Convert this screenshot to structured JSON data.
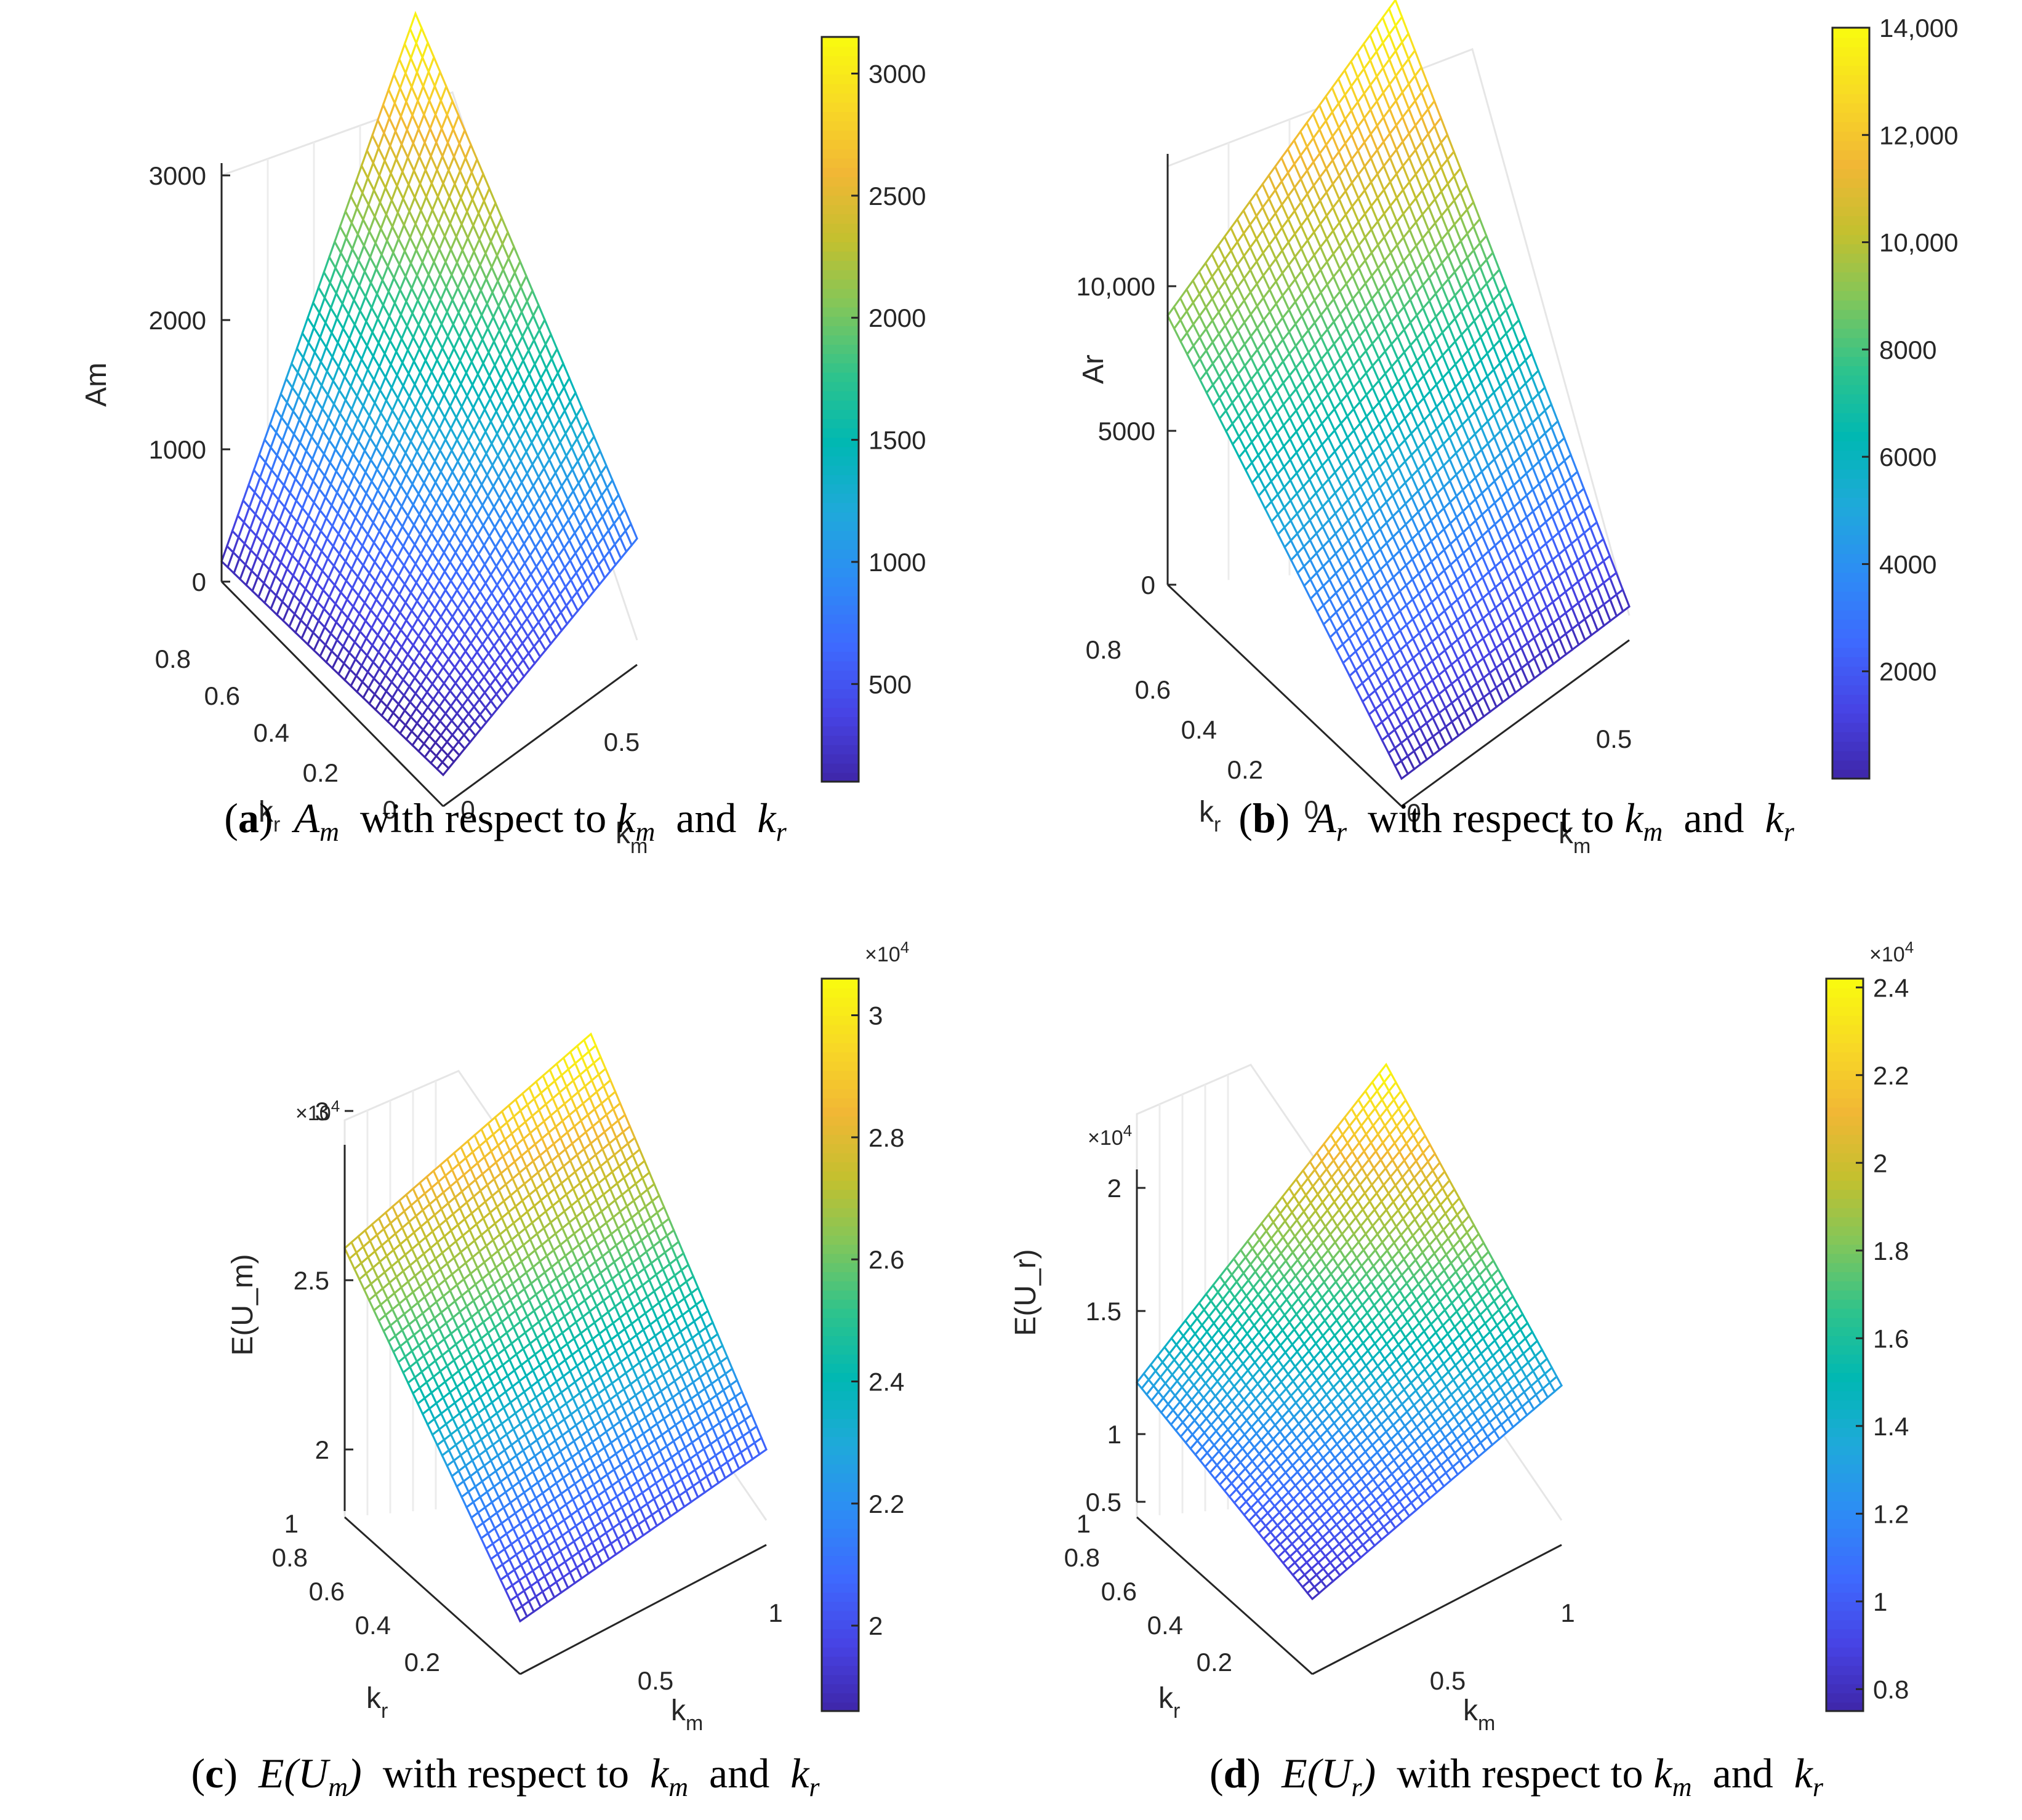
{
  "chart_data": [
    {
      "id": "a",
      "type": "surface",
      "zlabel": "Am",
      "xlabel": "k_m",
      "ylabel": "k_r",
      "zlim": [
        0,
        3000
      ],
      "z_ticks": [
        "0",
        "1000",
        "2000",
        "3000"
      ],
      "kr_ticks": [
        "0",
        "0.2",
        "0.4",
        "0.6",
        "0.8"
      ],
      "km_ticks": [
        "0",
        "0.5"
      ],
      "z_multiplier": "",
      "colorbar": {
        "min": 100,
        "max": 3150,
        "ticks": [
          "500",
          "1000",
          "1500",
          "2000",
          "2500",
          "3000"
        ],
        "multiplier": ""
      },
      "surface_corners": {
        "km0_kr0": 50,
        "km1_kr0": 750,
        "km0_kr1": 150,
        "km1_kr1": 3150
      },
      "caption": {
        "label": "a",
        "symbol": "A",
        "sub": "m",
        "text": "with respect to",
        "var1": "k",
        "var1_sub": "m",
        "conj": "and",
        "var2": "k",
        "var2_sub": "r"
      }
    },
    {
      "id": "b",
      "type": "surface",
      "zlabel": "Ar",
      "xlabel": "k_m",
      "ylabel": "k_r",
      "zlim": [
        0,
        14000
      ],
      "z_ticks": [
        "0",
        "5000",
        "10,000"
      ],
      "kr_ticks": [
        "0",
        "0.2",
        "0.4",
        "0.6",
        "0.8"
      ],
      "km_ticks": [
        "0",
        "0.5"
      ],
      "z_multiplier": "",
      "colorbar": {
        "min": 0,
        "max": 14000,
        "ticks": [
          "2000",
          "4000",
          "6000",
          "8000",
          "10,000",
          "12,000",
          "14,000"
        ],
        "multiplier": ""
      },
      "surface_corners": {
        "km0_kr0": 100,
        "km1_kr0": 300,
        "km0_kr1": 9000,
        "km1_kr1": 14000
      },
      "caption": {
        "label": "b",
        "symbol": "A",
        "sub": "r",
        "text": "with respect to",
        "var1": "k",
        "var1_sub": "m",
        "conj": "and",
        "var2": "k",
        "var2_sub": "r"
      }
    },
    {
      "id": "c",
      "type": "surface",
      "zlabel": "E(U_m)",
      "xlabel": "k_m",
      "ylabel": "k_r",
      "zlim": [
        1.8,
        3.05
      ],
      "z_ticks": [
        "2",
        "2.5",
        "3"
      ],
      "kr_ticks": [
        "0.2",
        "0.4",
        "0.6",
        "0.8",
        "1"
      ],
      "km_ticks": [
        "0.5",
        "1"
      ],
      "z_multiplier": "×10^4",
      "colorbar": {
        "min": 1.86,
        "max": 3.06,
        "ticks": [
          "2",
          "2.2",
          "2.4",
          "2.6",
          "2.8",
          "3"
        ],
        "multiplier": "×10^4"
      },
      "surface_corners": {
        "km0_kr0": 1.9,
        "km1_kr0": 2.05,
        "km0_kr1": 2.75,
        "km1_kr1": 3.05
      },
      "caption": {
        "label": "c",
        "symbol": "E(U",
        "sub": "m",
        "text": "with respect to",
        "var1": "k",
        "var1_sub": "m",
        "conj": "and",
        "var2": "k",
        "var2_sub": "r"
      }
    },
    {
      "id": "d",
      "type": "surface",
      "zlabel": "E(U_r)",
      "xlabel": "k_m",
      "ylabel": "k_r",
      "zlim": [
        0.5,
        2.4
      ],
      "z_ticks": [
        "0.5",
        "1",
        "1.5",
        "2"
      ],
      "kr_ticks": [
        "0.2",
        "0.4",
        "0.6",
        "0.8",
        "1"
      ],
      "km_ticks": [
        "0.5",
        "1"
      ],
      "z_multiplier": "×10^4",
      "colorbar": {
        "min": 0.75,
        "max": 2.42,
        "ticks": [
          "0.8",
          "1",
          "1.2",
          "1.4",
          "1.6",
          "1.8",
          "2",
          "2.2",
          "2.4"
        ],
        "multiplier": "×10^4"
      },
      "surface_corners": {
        "km0_kr0": 0.8,
        "km1_kr0": 1.3,
        "km0_kr1": 1.3,
        "km1_kr1": 2.42
      },
      "caption": {
        "label": "d",
        "symbol": "E(U",
        "sub": "r",
        "text": "with respect to",
        "var1": "k",
        "var1_sub": "m",
        "conj": "and",
        "var2": "k",
        "var2_sub": "r"
      }
    }
  ],
  "colormap": [
    "#3e26a8",
    "#4743e4",
    "#3e69fe",
    "#2d8cf5",
    "#1fa9da",
    "#00b8b3",
    "#2ec38c",
    "#7fc65c",
    "#c3c02f",
    "#f1b735",
    "#f8d925",
    "#f9fb0e"
  ]
}
